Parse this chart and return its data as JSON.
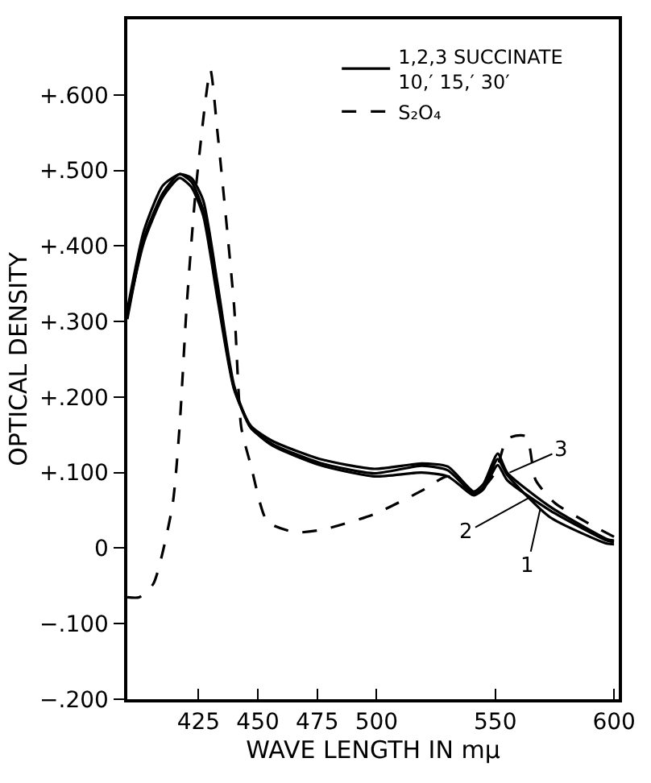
{
  "chart_data": {
    "type": "line",
    "xlabel": "WAVE LENGTH IN mμ",
    "ylabel": "OPTICAL DENSITY",
    "x": [
      395,
      402,
      410,
      417,
      422,
      427,
      433,
      440,
      447,
      456,
      476,
      499,
      519,
      530,
      541,
      545,
      551,
      555,
      573,
      597,
      600
    ],
    "series": [
      {
        "name": "1,2,3 SUCCINATE\n10,′ 15,′ 30′",
        "color": "#000000",
        "line_style": "solid",
        "values": [
          0.303,
          0.41,
          0.47,
          0.495,
          0.485,
          0.447,
          0.336,
          0.212,
          0.159,
          0.138,
          0.113,
          0.099,
          0.109,
          0.103,
          0.072,
          0.08,
          0.118,
          0.097,
          0.041,
          0.006,
          0.005
        ]
      },
      {
        "color": "#000000",
        "line_style": "solid",
        "values": [
          0.315,
          0.42,
          0.48,
          0.495,
          0.49,
          0.46,
          0.35,
          0.215,
          0.16,
          0.136,
          0.11,
          0.095,
          0.1,
          0.095,
          0.07,
          0.078,
          0.11,
          0.09,
          0.05,
          0.01,
          0.008
        ]
      },
      {
        "color": "#000000",
        "line_style": "solid",
        "values": [
          0.31,
          0.405,
          0.465,
          0.49,
          0.478,
          0.44,
          0.33,
          0.21,
          0.162,
          0.142,
          0.118,
          0.105,
          0.112,
          0.108,
          0.075,
          0.085,
          0.125,
          0.1,
          0.055,
          0.012,
          0.01
        ]
      },
      {
        "name": "S₂O₄",
        "color": "#000000",
        "line_style": "dashed",
        "x": [
          395,
          400,
          406,
          414,
          417,
          420,
          424,
          430,
          433,
          440,
          443,
          447,
          454,
          466,
          478,
          499,
          519,
          530,
          541,
          550,
          555,
          563,
          567,
          575,
          588,
          600
        ],
        "values": [
          -0.065,
          -0.065,
          -0.047,
          0.056,
          0.16,
          0.32,
          0.48,
          0.633,
          0.55,
          0.32,
          0.16,
          0.11,
          0.035,
          0.021,
          0.025,
          0.045,
          0.076,
          0.095,
          0.07,
          0.1,
          0.145,
          0.148,
          0.09,
          0.06,
          0.035,
          0.015
        ]
      }
    ],
    "xlim": [
      395,
      602
    ],
    "xticks": [
      425,
      450,
      475,
      500,
      550,
      600
    ],
    "ylim": [
      -0.2,
      0.7
    ],
    "yticks": [
      {
        "value": -0.2,
        "label": "−.200"
      },
      {
        "value": -0.1,
        "label": "−.100"
      },
      0,
      {
        "value": 0.1,
        "label": "+.100"
      },
      {
        "value": 0.2,
        "label": "+.200"
      },
      {
        "value": 0.3,
        "label": "+.300"
      },
      {
        "value": 0.4,
        "label": "+.400"
      },
      {
        "value": 0.5,
        "label": "+.500"
      },
      {
        "value": 0.6,
        "label": "+.600"
      }
    ],
    "annotations": [
      {
        "text": "3",
        "x": 556,
        "y": 0.1
      },
      {
        "text": "2",
        "x": 565,
        "y": 0.068
      },
      {
        "text": "1",
        "x": 569,
        "y": 0.053
      }
    ],
    "legend": "top right",
    "marker": "none"
  }
}
